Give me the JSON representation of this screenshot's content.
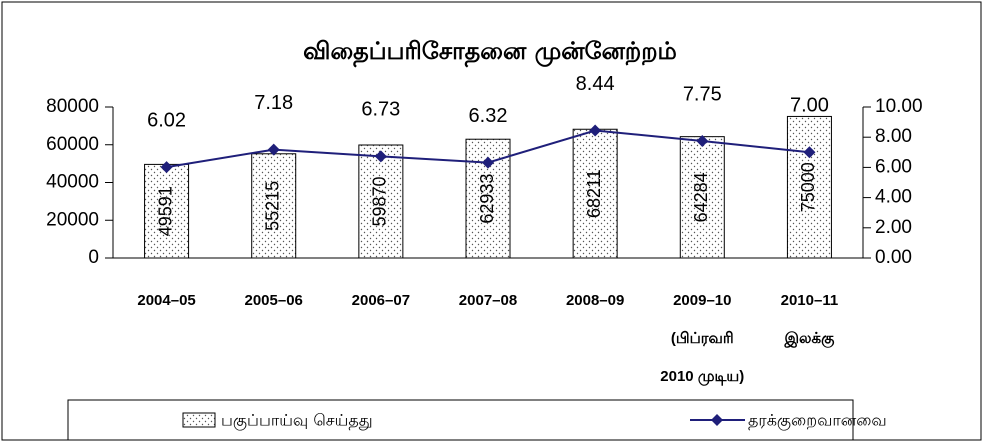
{
  "chart_data": {
    "type": "bar-line",
    "title": "விதைப்பரிசோதனை முன்னேற்றம்",
    "categories": [
      "2004–05",
      "2005–06",
      "2006–07",
      "2007–08",
      "2008–09",
      "2009–10\n(பிப்ரவரி\n2010 முடிய)",
      "2010–11\nஇலக்கு"
    ],
    "series": [
      {
        "name": "பகுப்பாய்வு செய்தது",
        "type": "bar",
        "color": "#000000",
        "axis": "y",
        "values": [
          49591,
          55215,
          59870,
          62933,
          68211,
          64284,
          75000
        ]
      },
      {
        "name": "தரக்குறைவானவை",
        "type": "line",
        "color": "#1f1f7a",
        "axis": "y2",
        "values": [
          6.02,
          7.18,
          6.73,
          6.32,
          8.44,
          7.75,
          7.0
        ],
        "value_labels": [
          "6.02",
          "7.18",
          "6.73",
          "6.32",
          "8.44",
          "7.75",
          "7.00"
        ]
      }
    ],
    "ylim": [
      0,
      80000
    ],
    "yticks": [
      0,
      20000,
      40000,
      60000,
      80000
    ],
    "y2lim": [
      0,
      10
    ],
    "y2ticks": [
      {
        "value": 0,
        "label": "0.00"
      },
      {
        "value": 2,
        "label": "2.00"
      },
      {
        "value": 4,
        "label": "4.00"
      },
      {
        "value": 6,
        "label": "6.00"
      },
      {
        "value": 8,
        "label": "8.00"
      },
      {
        "value": 10,
        "label": "10.00"
      }
    ],
    "legend": "bottom"
  }
}
